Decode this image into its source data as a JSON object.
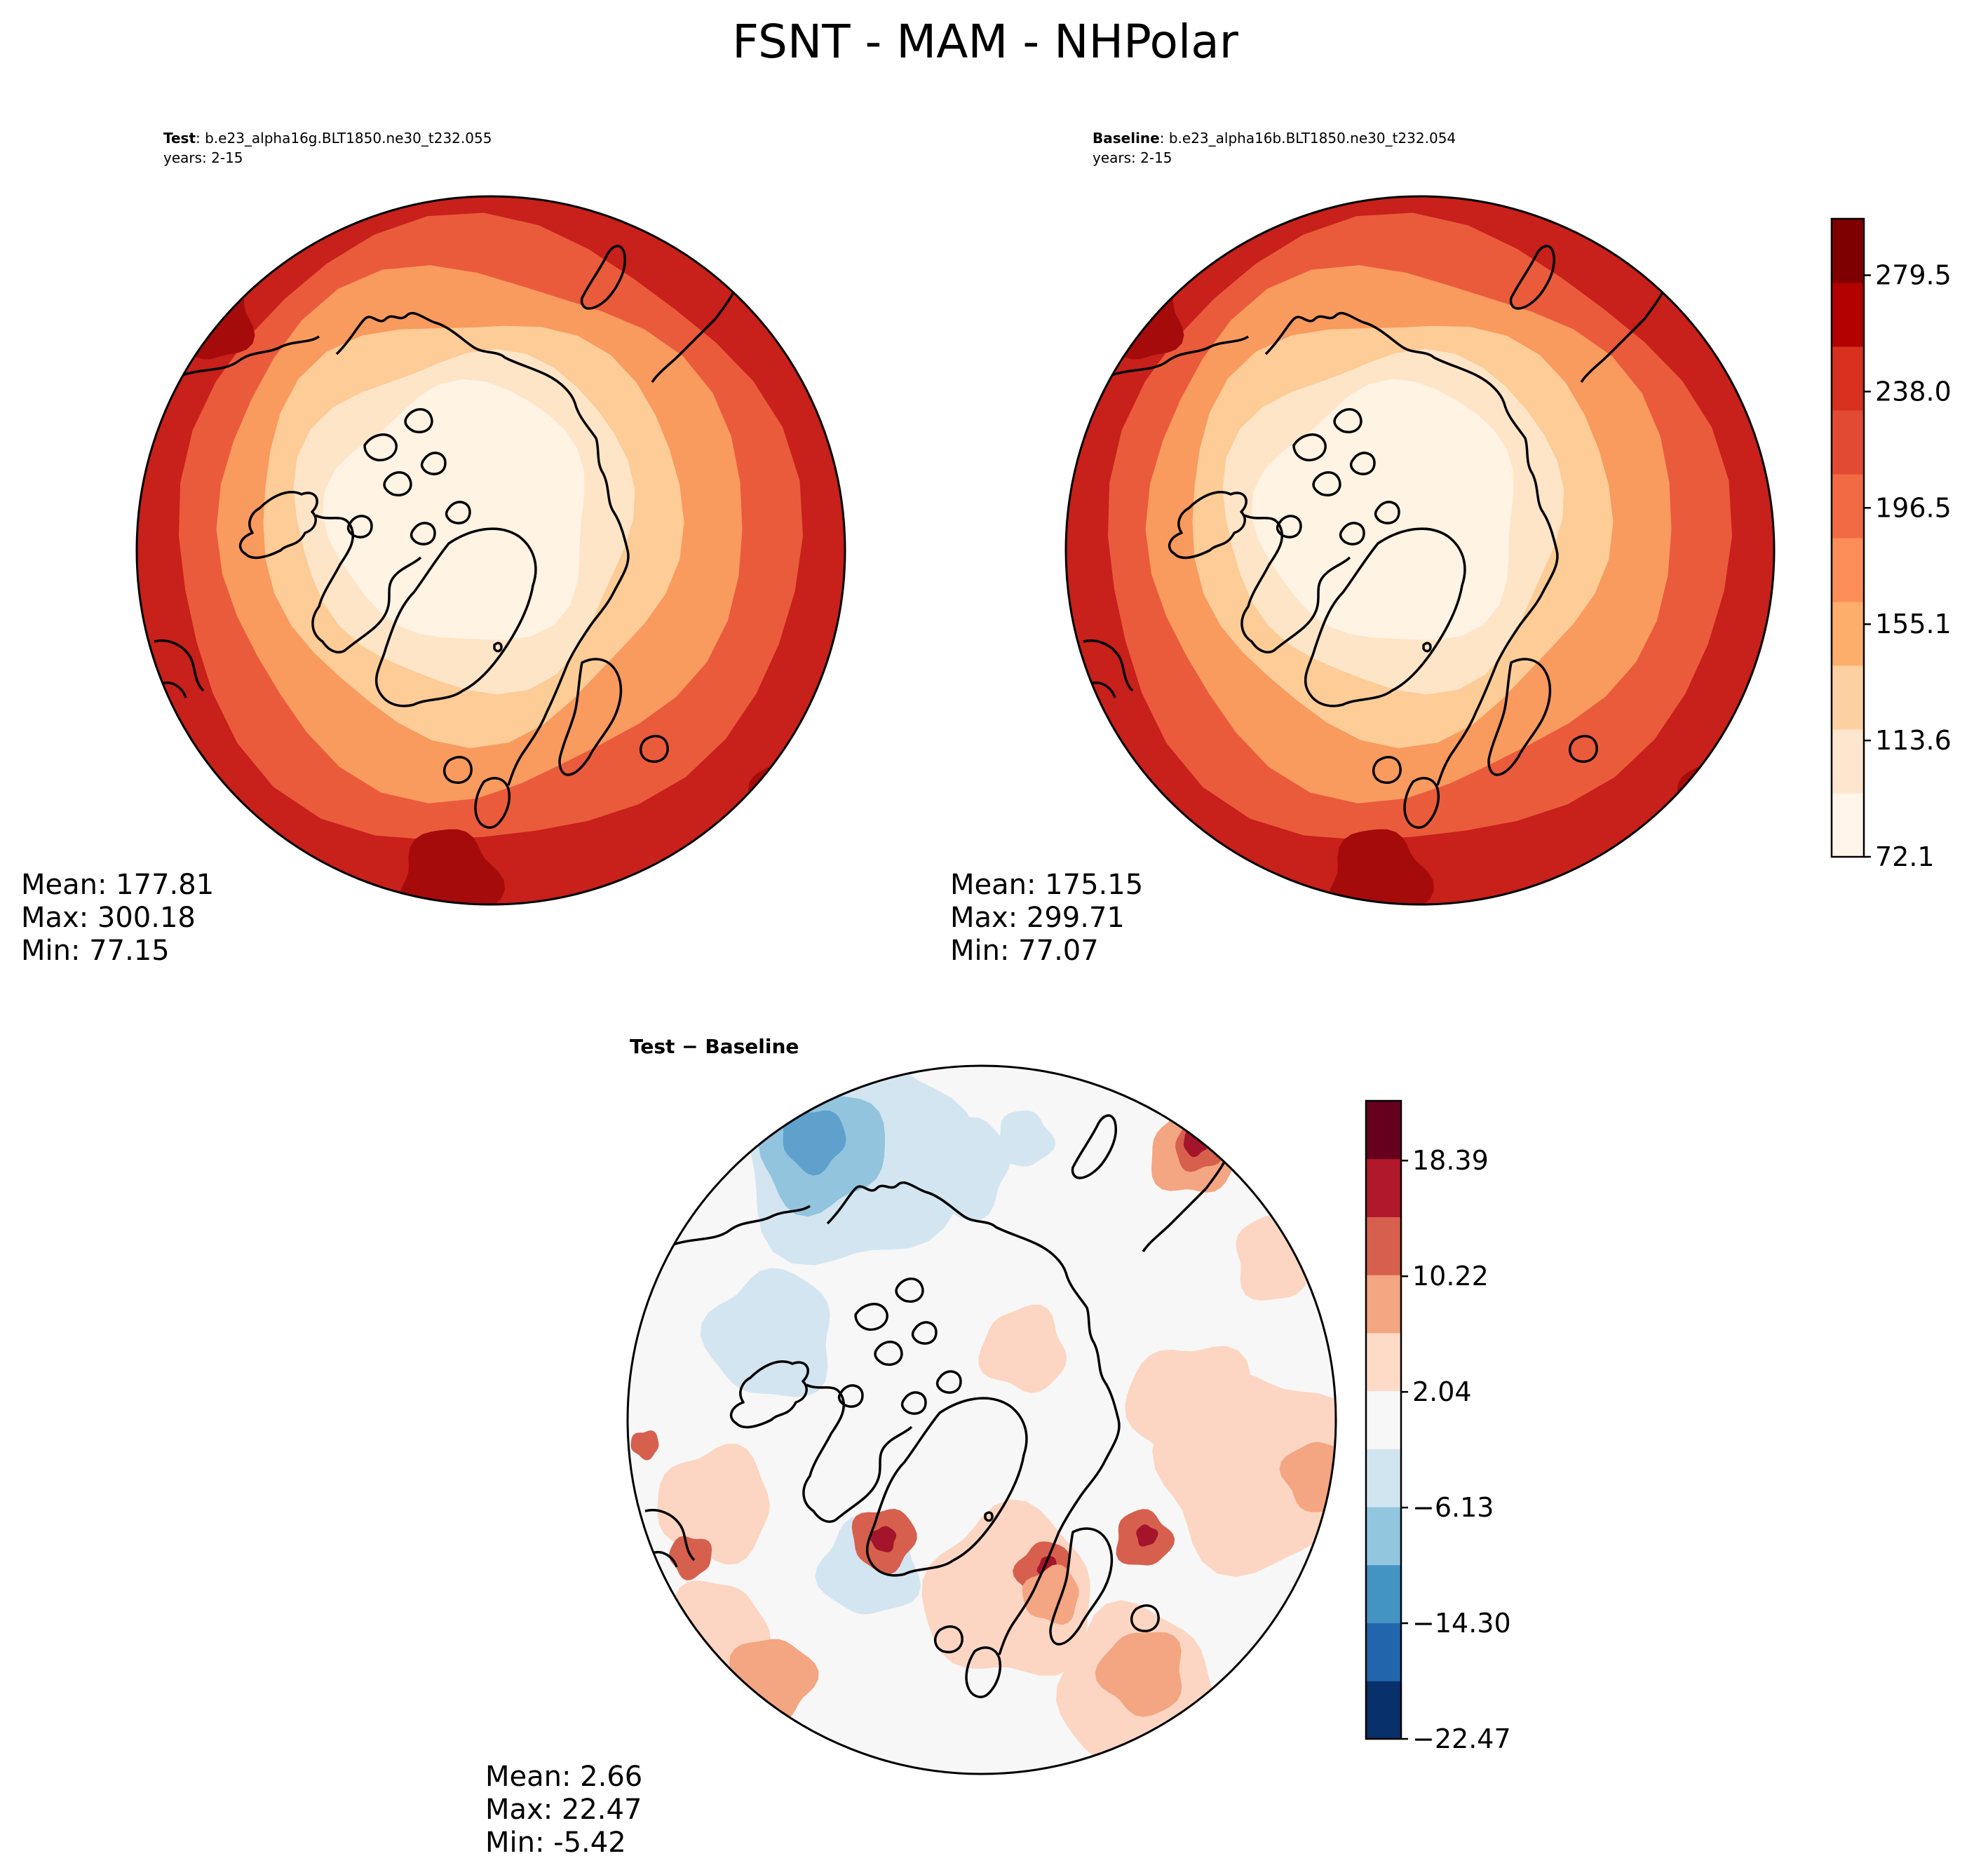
{
  "figure": {
    "title": "FSNT - MAM - NHPolar"
  },
  "panels": {
    "test": {
      "label_bold": "Test",
      "label_rest": ": b.e23_alpha16g.BLT1850.ne30_t232.055",
      "years": "years: 2-15",
      "stats": {
        "mean": "Mean: 177.81",
        "max": "Max: 300.18",
        "min": "Min: 77.15"
      }
    },
    "baseline": {
      "label_bold": "Baseline",
      "label_rest": ": b.e23_alpha16b.BLT1850.ne30_t232.054",
      "years": "years: 2-15",
      "stats": {
        "mean": "Mean: 175.15",
        "max": "Max: 299.71",
        "min": "Min: 77.07"
      }
    },
    "diff": {
      "title": "Test − Baseline",
      "stats": {
        "mean": "Mean:  2.66",
        "max": "Max: 22.47",
        "min": "Min: -5.42"
      }
    }
  },
  "colorbars": {
    "main": {
      "ticks": [
        "72.1",
        "113.6",
        "155.1",
        "196.5",
        "238.0",
        "279.5"
      ],
      "colors": [
        "#fff5eb",
        "#fee6ce",
        "#fdd0a2",
        "#fdae6b",
        "#fc8d59",
        "#f16a43",
        "#e34a33",
        "#d7301f",
        "#b30000",
        "#7f0000"
      ]
    },
    "diff": {
      "ticks": [
        "−22.47",
        "−14.30",
        "−6.13",
        "2.04",
        "10.22",
        "18.39"
      ],
      "colors": [
        "#08306b",
        "#2166ac",
        "#4393c3",
        "#92c5de",
        "#d1e5f0",
        "#f7f7f7",
        "#fddbc7",
        "#f4a582",
        "#d6604d",
        "#b2182b",
        "#67001f"
      ]
    }
  },
  "map_colors": {
    "main": {
      "outer": "#c8201a",
      "mid": "#ea5b3b",
      "inner": "#f99a5e",
      "light": "#fdcc97",
      "pale": "#fee5c8",
      "center": "#fff3e3",
      "dark": "#a50b0b"
    },
    "diff": {
      "base": "#f7f7f7",
      "warm": "#fcd6c2",
      "warm2": "#f4a582",
      "warm3": "#d6604d",
      "warm4": "#a4142a",
      "cool": "#d3e5f1",
      "cool2": "#93c4de",
      "cool3": "#5fa1cc"
    }
  }
}
